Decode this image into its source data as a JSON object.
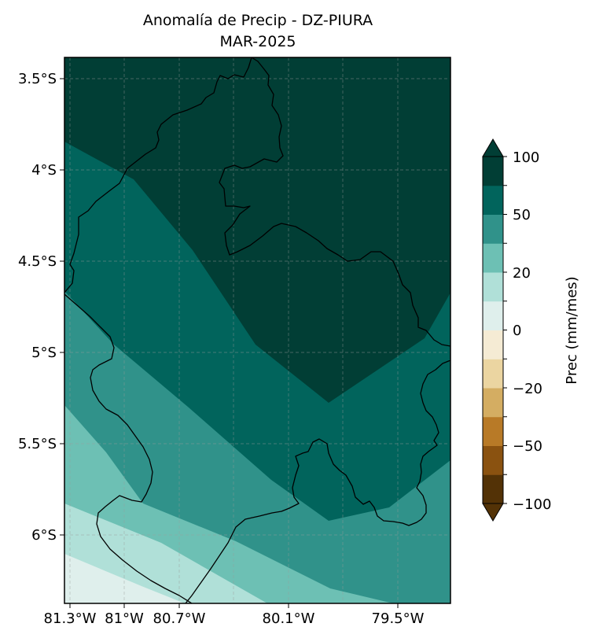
{
  "title": {
    "line1": "Anomalía de Precip - DZ-PIURA",
    "line2": "MAR-2025"
  },
  "map": {
    "lat_ticks": [
      "3.5°S",
      "4°S",
      "4.5°S",
      "5°S",
      "5.5°S",
      "6°S"
    ],
    "lon_ticks": [
      "81.3°W",
      "81°W",
      "80.7°W",
      "80.1°W",
      "79.5°W"
    ],
    "gridlines": true,
    "fill_colors": {
      "band_0_10": "#dfefec",
      "band_10_20": "#b0e0d8",
      "band_20_30": "#6dc0b4",
      "band_30_50": "#30928a",
      "band_50_75": "#01645c",
      "band_75_100": "#013e35"
    },
    "boundary_color": "#000000"
  },
  "colorbar": {
    "label": "Prec (mm/mes)",
    "tick_labels": [
      "100",
      "50",
      "20",
      "0",
      "−20",
      "−50",
      "−100"
    ],
    "levels": [
      -100,
      -75,
      -50,
      -30,
      -20,
      -10,
      0,
      10,
      20,
      30,
      50,
      75,
      100
    ],
    "colors": [
      "#533206",
      "#8a5210",
      "#b87a27",
      "#d4ad62",
      "#ebd5a1",
      "#f5ebd4",
      "#dfefec",
      "#b0e0d8",
      "#6dc0b4",
      "#30928a",
      "#01645c",
      "#013e35"
    ],
    "extend_low_color": "#533206",
    "extend_high_color": "#013e35"
  }
}
